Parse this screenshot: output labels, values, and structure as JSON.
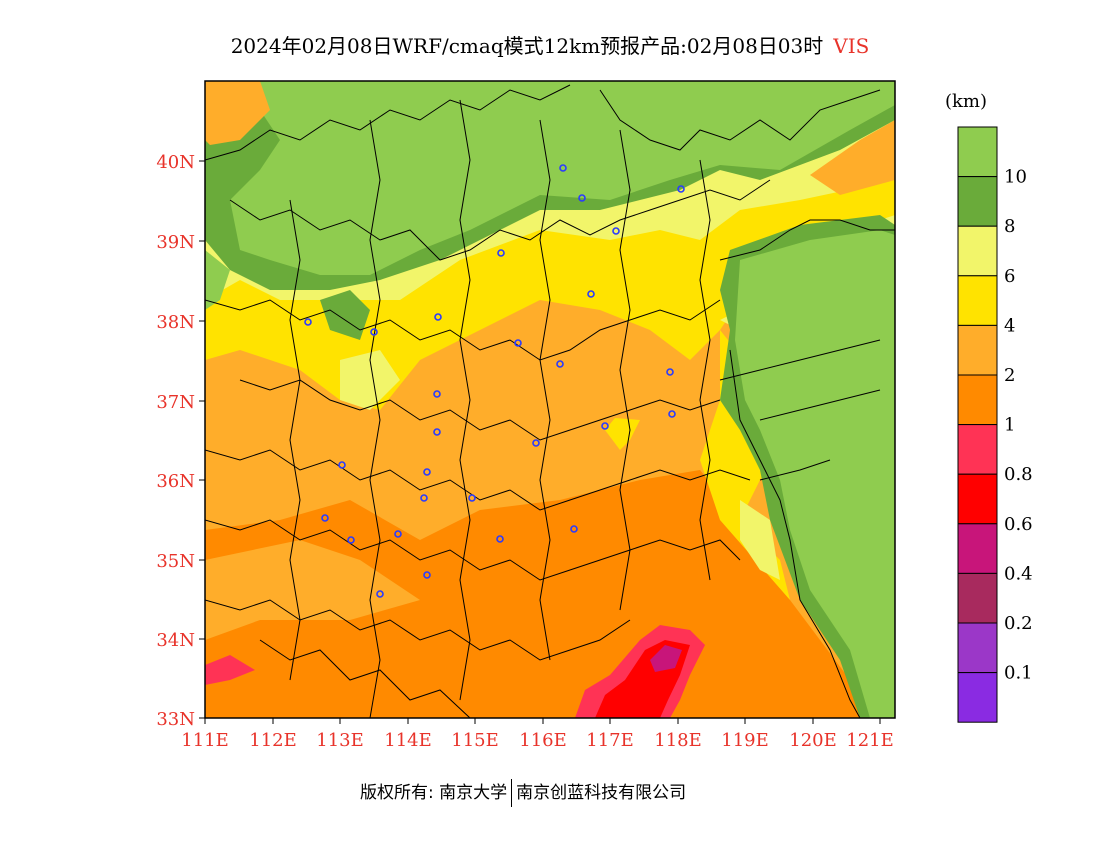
{
  "header": {
    "title": "2024年02月08日WRF/cmaq模式12km预报产品:02月08日03时",
    "variable": "VIS"
  },
  "axes": {
    "lat_labels": [
      "40N",
      "39N",
      "38N",
      "37N",
      "36N",
      "35N",
      "34N",
      "33N"
    ],
    "lon_labels": [
      "111E",
      "112E",
      "113E",
      "114E",
      "115E",
      "116E",
      "117E",
      "118E",
      "119E",
      "120E",
      "121E"
    ]
  },
  "colorbar": {
    "unit": "(km)",
    "labels": [
      "10",
      "8",
      "6",
      "4",
      "2",
      "1",
      "0.8",
      "0.6",
      "0.4",
      "0.2",
      "0.1"
    ],
    "colors": [
      "#8fcc4f",
      "#6aab3a",
      "#f2f56a",
      "#ffe300",
      "#ffad2a",
      "#ff8a00",
      "#ff3355",
      "#ff0000",
      "#c8157a",
      "#a82a5e",
      "#9b37c8",
      "#8a2be2"
    ]
  },
  "footer": {
    "left": "版权所有: 南京大学",
    "right": "南京创蓝科技有限公司"
  }
}
